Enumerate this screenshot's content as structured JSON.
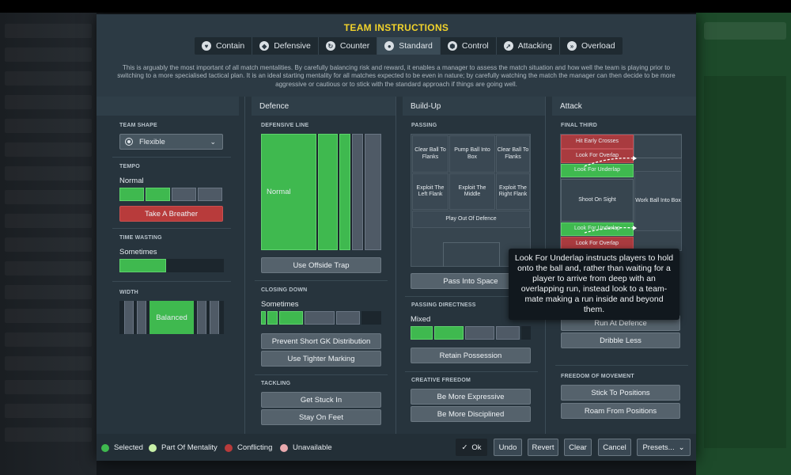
{
  "dialog": {
    "title": "TEAM INSTRUCTIONS",
    "description": "This is arguably the most important of all match mentalities. By carefully balancing risk and reward, it enables a manager to assess the match situation and how well the team is playing prior to switching to a more specialised tactical plan. It is an ideal starting mentality for all matches expected to be even in nature; by carefully watching the match the manager can then decide to be more aggressive or cautious or to stick with the standard approach if things are going well."
  },
  "tabs": [
    {
      "label": "Contain",
      "icon": "heart-shield-icon"
    },
    {
      "label": "Defensive",
      "icon": "shield-icon"
    },
    {
      "label": "Counter",
      "icon": "refresh-icon"
    },
    {
      "label": "Standard",
      "icon": "ball-icon",
      "active": true
    },
    {
      "label": "Control",
      "icon": "football-icon"
    },
    {
      "label": "Attacking",
      "icon": "arrow-icon"
    },
    {
      "label": "Overload",
      "icon": "double-arrow-icon"
    }
  ],
  "columns": {
    "defence": "Defence",
    "buildup": "Build-Up",
    "attack": "Attack"
  },
  "general": {
    "team_shape_label": "TEAM SHAPE",
    "team_shape_value": "Flexible",
    "tempo_label": "TEMPO",
    "tempo_value": "Normal",
    "tempo_level": 0.5,
    "breather_button": "Take A Breather",
    "time_wasting_label": "TIME WASTING",
    "time_wasting_value": "Sometimes",
    "time_wasting_level": 0.45,
    "width_label": "WIDTH",
    "width_value": "Balanced"
  },
  "defence": {
    "line_label": "DEFENSIVE LINE",
    "line_value": "Normal",
    "offside_button": "Use Offside Trap",
    "closing_label": "CLOSING DOWN",
    "closing_value": "Sometimes",
    "prevent_gk_button": "Prevent Short GK Distribution",
    "tighter_marking_button": "Use Tighter Marking",
    "tackling_label": "TACKLING",
    "get_stuck_in_button": "Get Stuck In",
    "stay_on_feet_button": "Stay On Feet"
  },
  "buildup": {
    "passing_label": "PASSING",
    "cells": {
      "clear_left": "Clear Ball To Flanks",
      "pump": "Pump Ball Into Box",
      "clear_right": "Clear Ball To Flanks",
      "exploit_left": "Exploit The Left Flank",
      "exploit_middle": "Exploit The Middle",
      "exploit_right": "Exploit The Right Flank",
      "play_out": "Play Out Of Defence"
    },
    "pass_into_space_button": "Pass Into Space",
    "directness_label": "PASSING DIRECTNESS",
    "directness_value": "Mixed",
    "retain_button": "Retain Possession",
    "creative_label": "CREATIVE FREEDOM",
    "expressive_button": "Be More Expressive",
    "disciplined_button": "Be More Disciplined"
  },
  "attack": {
    "final_third_label": "FINAL THIRD",
    "cells": {
      "hit_early": "Hit Early Crosses",
      "overlap_top": "Look For Overlap",
      "underlap_top": "Look For Underlap",
      "shoot_on_sight": "Shoot On Sight",
      "work_ball": "Work Ball Into Box",
      "underlap_bottom": "Look For Underlap",
      "overlap_bottom": "Look For Overlap"
    },
    "run_at_defence_button": "Run At Defence",
    "dribble_less_button": "Dribble Less",
    "freedom_label": "FREEDOM OF MOVEMENT",
    "stick_button": "Stick To Positions",
    "roam_button": "Roam From Positions"
  },
  "tooltip": "Look For Underlap instructs players to hold onto the ball and, rather than waiting for a player to arrive from deep with an overlapping run, instead look to a team-mate making a run inside and beyond them.",
  "legend": {
    "selected": "Selected",
    "part": "Part Of Mentality",
    "conflicting": "Conflicting",
    "unavailable": "Unavailable"
  },
  "footer": {
    "ok": "Ok",
    "undo": "Undo",
    "revert": "Revert",
    "clear": "Clear",
    "cancel": "Cancel",
    "presets": "Presets..."
  },
  "colors": {
    "title": "#f2d32b",
    "selected": "#3fb94f",
    "part": "#c8f0a8",
    "conflicting": "#b83b3b",
    "unavailable": "#e9a9ae"
  }
}
